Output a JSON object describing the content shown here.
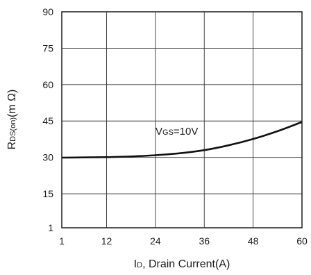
{
  "chart_data": {
    "type": "line",
    "xlabel_parts": [
      "I",
      "D",
      ", Drain Current(A)"
    ],
    "ylabel_parts": [
      "R",
      "DS(on)",
      "(m Ω)"
    ],
    "xticks": [
      1,
      12,
      24,
      36,
      48,
      60
    ],
    "yticks": [
      1,
      15,
      30,
      45,
      60,
      75,
      90
    ],
    "xlim": [
      1,
      60
    ],
    "ylim": [
      1,
      90
    ],
    "grid": true,
    "series": [
      {
        "x": [
          1,
          6,
          12,
          18,
          24,
          30,
          36,
          42,
          48,
          54,
          60
        ],
        "y": [
          29.9,
          30.0,
          30.1,
          30.4,
          30.9,
          31.7,
          33.0,
          35.0,
          37.6,
          40.8,
          44.6
        ]
      }
    ],
    "annotation_parts": [
      "V",
      "GS",
      "=10V"
    ],
    "annotation_pos": {
      "x": 23,
      "y": 40
    }
  }
}
